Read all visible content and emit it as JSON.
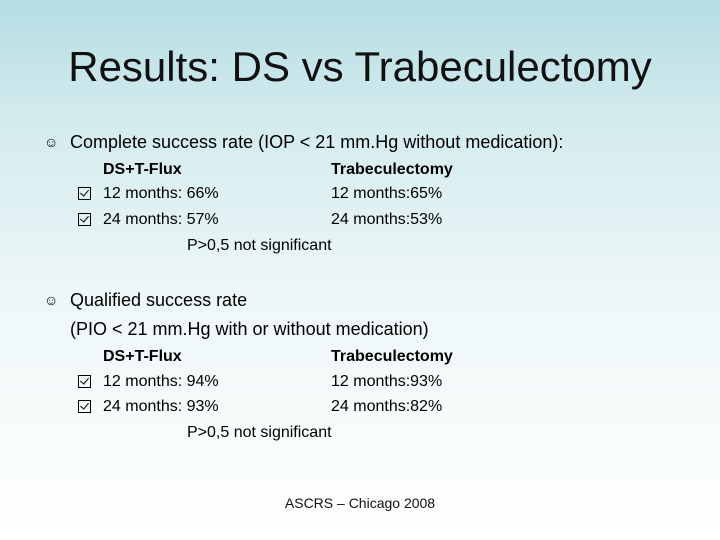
{
  "slide": {
    "title": "Results: DS vs Trabeculectomy",
    "sections": [
      {
        "bullet_icon": "smiley-icon",
        "heading_line1": "Complete success rate (IOP < 21 mm.Hg without medication):",
        "heading_line2": "",
        "col1_header": "DS+T-Flux",
        "col2_header": "Trabeculectomy",
        "rows": [
          {
            "left": "12 months: 66%",
            "right": "12 months:65%"
          },
          {
            "left": "24 months: 57%",
            "right": "24 months:53%"
          }
        ],
        "note": "P>0,5 not significant"
      },
      {
        "bullet_icon": "smiley-icon",
        "heading_line1": "Qualified success rate",
        "heading_line2": "(PIO < 21 mm.Hg with or without medication)",
        "col1_header": "DS+T-Flux",
        "col2_header": "Trabeculectomy",
        "rows": [
          {
            "left": "12 months: 94%",
            "right": "12 months:93%"
          },
          {
            "left": "24 months: 93%",
            "right": "24 months:82%"
          }
        ],
        "note": "P>0,5 not significant"
      }
    ],
    "footer": "ASCRS – Chicago 2008"
  }
}
